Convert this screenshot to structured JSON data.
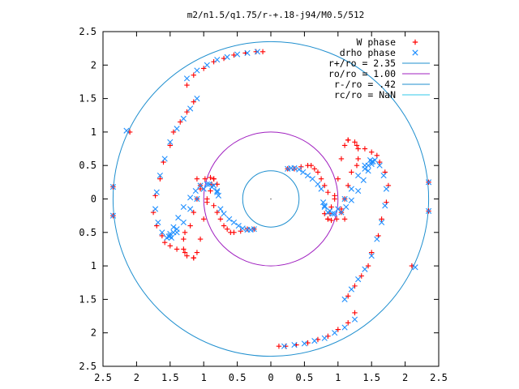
{
  "chart_data": {
    "type": "scatter",
    "title": "m2/n1.5/q1.75/r-+.18-j94/M0.5/512",
    "xlim": [
      -2.5,
      2.5
    ],
    "ylim": [
      -2.5,
      2.5
    ],
    "x_tick_labels": [
      "2.5",
      "2",
      "1.5",
      "1",
      "0.5",
      "0",
      "0.5",
      "1",
      "1.5",
      "2",
      "2.5"
    ],
    "y_tick_labels": [
      "2.5",
      "2",
      "1.5",
      "1",
      "0.5",
      "0",
      "0.5",
      "1",
      "1.5",
      "2",
      "2.5"
    ],
    "grid": false,
    "legend_position": "top-right",
    "series": [
      {
        "name": "W phase",
        "marker": "plus",
        "color": "#ff0000",
        "x": [
          -1.15,
          -1.25,
          -1.35,
          -1.45,
          -1.5,
          -1.6,
          -1.65,
          -1.72,
          -1.75,
          -1.7,
          -1.62,
          -1.58,
          -1.5,
          -1.4,
          -1.28,
          -1.15,
          -1.1,
          -1.05,
          -1.0,
          -0.95,
          -0.9,
          -0.88,
          -0.85,
          -0.8,
          -0.85,
          -0.9,
          -0.98,
          -1.05,
          -1.1,
          -1.15,
          -1.2,
          -1.28,
          -1.3,
          -1.3,
          -1.25,
          -1.15,
          -1.1,
          -1.05,
          -0.95,
          -0.85,
          -0.8,
          -0.75,
          -0.7,
          -0.65,
          -0.6,
          -0.55,
          -0.45,
          -0.35,
          -0.25,
          -2.1,
          -2.35,
          -2.35,
          1.15,
          1.25,
          1.35,
          1.45,
          1.5,
          1.6,
          1.65,
          1.72,
          1.75,
          1.7,
          1.62,
          1.58,
          1.5,
          1.4,
          1.28,
          1.15,
          1.1,
          1.05,
          1.0,
          0.95,
          0.9,
          0.88,
          0.85,
          0.8,
          0.85,
          0.9,
          0.98,
          1.05,
          1.1,
          1.15,
          1.2,
          1.28,
          1.3,
          1.3,
          1.25,
          1.15,
          1.1,
          1.05,
          0.95,
          0.85,
          0.8,
          0.75,
          0.7,
          0.65,
          0.6,
          0.55,
          0.45,
          0.35,
          0.25,
          2.1,
          2.35,
          2.35,
          -1.25,
          -1.15,
          -1.0,
          -0.85,
          -0.7,
          -0.55,
          -0.38,
          -0.22,
          -0.12,
          1.25,
          1.15,
          1.0,
          0.85,
          0.7,
          0.55,
          0.38,
          0.22,
          0.12
        ],
        "y": [
          1.45,
          1.3,
          1.15,
          1.0,
          0.8,
          0.55,
          0.3,
          0.05,
          -0.2,
          -0.4,
          -0.55,
          -0.65,
          -0.7,
          -0.75,
          -0.8,
          -0.88,
          -0.8,
          -0.6,
          -0.3,
          -0.05,
          0.12,
          0.22,
          0.3,
          0.22,
          0.3,
          0.32,
          0.3,
          0.2,
          0.0,
          -0.2,
          -0.4,
          -0.5,
          -0.6,
          -0.75,
          -0.85,
          -0.88,
          0.3,
          0.15,
          0.0,
          -0.1,
          -0.2,
          -0.3,
          -0.4,
          -0.45,
          -0.5,
          -0.5,
          -0.48,
          -0.45,
          -0.45,
          1.0,
          0.18,
          -0.25,
          -1.45,
          -1.3,
          -1.15,
          -1.0,
          -0.8,
          -0.55,
          -0.3,
          -0.05,
          0.2,
          0.4,
          0.55,
          0.65,
          0.7,
          0.75,
          0.8,
          0.88,
          0.8,
          0.6,
          0.3,
          0.05,
          -0.12,
          -0.22,
          -0.3,
          -0.22,
          -0.3,
          -0.32,
          -0.3,
          -0.2,
          0.0,
          0.2,
          0.4,
          0.5,
          0.6,
          0.75,
          0.85,
          0.88,
          -0.3,
          -0.15,
          0.0,
          0.1,
          0.2,
          0.3,
          0.4,
          0.45,
          0.5,
          0.5,
          0.48,
          0.45,
          0.45,
          -1.0,
          -0.18,
          0.25,
          1.7,
          1.85,
          1.95,
          2.05,
          2.1,
          2.15,
          2.18,
          2.2,
          2.2,
          -1.7,
          -1.85,
          -1.95,
          -2.05,
          -2.1,
          -2.15,
          -2.18,
          -2.2,
          -2.2
        ]
      },
      {
        "name": "drho phase",
        "marker": "cross",
        "color": "#1f8fff",
        "x": [
          -1.1,
          -1.2,
          -1.3,
          -1.4,
          -1.5,
          -1.58,
          -1.65,
          -1.7,
          -1.72,
          -1.68,
          -1.62,
          -1.55,
          -1.48,
          -1.4,
          -1.3,
          -1.2,
          -1.1,
          -1.0,
          -0.92,
          -0.85,
          -0.8,
          -0.78,
          -0.8,
          -0.88,
          -0.95,
          -1.05,
          -1.12,
          -1.2,
          -1.3,
          -1.38,
          -1.45,
          -1.5,
          -1.52,
          -1.5,
          -1.45,
          -1.4,
          -0.75,
          -0.7,
          -0.62,
          -0.55,
          -0.48,
          -0.42,
          -0.35,
          -0.3,
          -0.25,
          -2.15,
          -2.35,
          -2.35,
          1.1,
          1.2,
          1.3,
          1.4,
          1.5,
          1.58,
          1.65,
          1.7,
          1.72,
          1.68,
          1.62,
          1.55,
          1.48,
          1.4,
          1.3,
          1.2,
          1.1,
          1.0,
          0.92,
          0.85,
          0.8,
          0.78,
          0.8,
          0.88,
          0.95,
          1.05,
          1.12,
          1.2,
          1.3,
          1.38,
          1.45,
          1.5,
          1.52,
          1.5,
          1.45,
          1.4,
          0.75,
          0.7,
          0.62,
          0.55,
          0.48,
          0.42,
          0.35,
          0.3,
          0.25,
          2.15,
          2.35,
          2.35,
          -1.25,
          -1.1,
          -0.95,
          -0.8,
          -0.65,
          -0.5,
          -0.35,
          -0.2,
          1.25,
          1.1,
          0.95,
          0.8,
          0.65,
          0.5,
          0.35,
          0.2
        ],
        "y": [
          1.5,
          1.35,
          1.2,
          1.05,
          0.85,
          0.6,
          0.35,
          0.1,
          -0.15,
          -0.35,
          -0.5,
          -0.58,
          -0.58,
          -0.5,
          -0.35,
          -0.15,
          0.0,
          0.15,
          0.22,
          0.2,
          0.12,
          0.05,
          0.1,
          0.18,
          0.22,
          0.2,
          0.12,
          0.02,
          -0.12,
          -0.28,
          -0.42,
          -0.52,
          -0.56,
          -0.55,
          -0.5,
          -0.45,
          -0.15,
          -0.22,
          -0.3,
          -0.35,
          -0.4,
          -0.44,
          -0.46,
          -0.46,
          -0.45,
          1.02,
          0.18,
          -0.25,
          -1.5,
          -1.35,
          -1.2,
          -1.05,
          -0.85,
          -0.6,
          -0.35,
          -0.1,
          0.15,
          0.35,
          0.5,
          0.58,
          0.58,
          0.5,
          0.35,
          0.15,
          0.0,
          -0.15,
          -0.22,
          -0.2,
          -0.12,
          -0.05,
          -0.1,
          -0.18,
          -0.22,
          -0.2,
          -0.12,
          -0.02,
          0.12,
          0.28,
          0.42,
          0.52,
          0.56,
          0.55,
          0.5,
          0.45,
          0.15,
          0.22,
          0.3,
          0.35,
          0.4,
          0.44,
          0.46,
          0.46,
          0.45,
          -1.02,
          -0.18,
          0.25,
          1.8,
          1.92,
          2.0,
          2.08,
          2.12,
          2.16,
          2.18,
          2.2,
          -1.8,
          -1.92,
          -2.0,
          -2.08,
          -2.12,
          -2.16,
          -2.18,
          -2.2
        ]
      }
    ],
    "circles": [
      {
        "name": "r+/ro = 2.35",
        "radius": 2.35,
        "color": "#1f8fcf"
      },
      {
        "name": "ro/ro = 1.00",
        "radius": 1.0,
        "color": "#a020c0"
      },
      {
        "name": "r-/ro =  .42",
        "radius": 0.42,
        "color": "#1f8fcf"
      },
      {
        "name": "rc/ro = NaN",
        "radius": null,
        "color": "#30c8e8"
      }
    ]
  }
}
